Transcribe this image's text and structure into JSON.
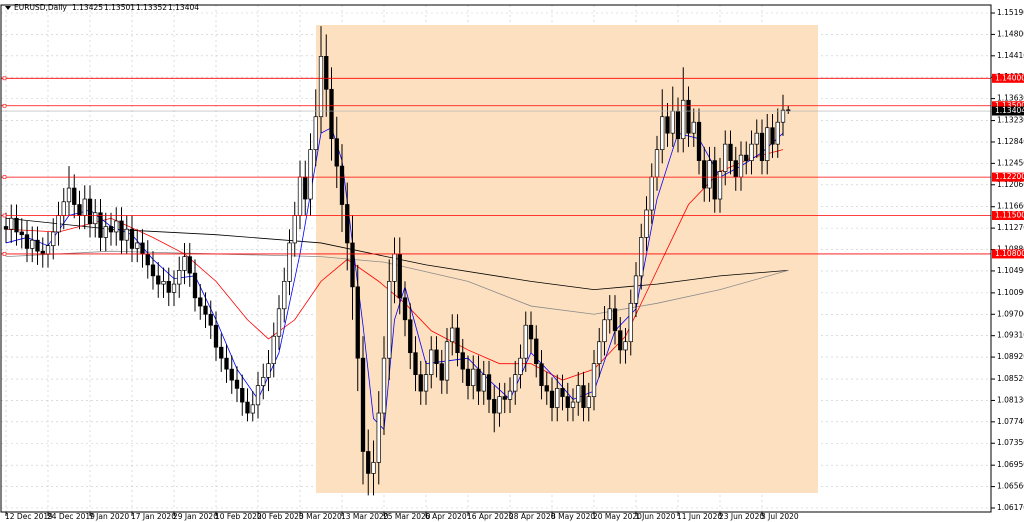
{
  "chart_data": {
    "type": "candlestick",
    "symbol": "EURUSD,Daily",
    "categories": [
      "12 Dec 2019",
      null,
      null,
      null,
      null,
      null,
      null,
      null,
      "24 Dec 2019",
      null,
      null,
      null,
      null,
      null,
      null,
      null,
      "7 Jan 2020",
      null,
      null,
      null,
      null,
      null,
      null,
      null,
      "17 Jan 2020",
      null,
      null,
      null,
      null,
      null,
      null,
      null,
      "29 Jan 2020",
      null,
      null,
      null,
      null,
      null,
      null,
      null,
      "10 Feb 2020",
      null,
      null,
      null,
      null,
      null,
      null,
      null,
      "20 Feb 2020",
      null,
      null,
      null,
      null,
      null,
      null,
      null,
      "3 Mar 2020",
      null,
      null,
      null,
      null,
      null,
      null,
      null,
      "13 Mar 2020",
      null,
      null,
      null,
      null,
      null,
      null,
      null,
      "25 Mar 2020",
      null,
      null,
      null,
      null,
      null,
      null,
      null,
      "6 Apr 2020",
      null,
      null,
      null,
      null,
      null,
      null,
      null,
      "16 Apr 2020",
      null,
      null,
      null,
      null,
      null,
      null,
      null,
      "28 Apr 2020",
      null,
      null,
      null,
      null,
      null,
      null,
      null,
      "8 May 2020",
      null,
      null,
      null,
      null,
      null,
      null,
      null,
      "20 May 2020",
      null,
      null,
      null,
      null,
      null,
      null,
      null,
      "1 Jun 2020",
      null,
      null,
      null,
      null,
      null,
      null,
      null,
      "11 Jun 2020",
      null,
      null,
      null,
      null,
      null,
      null,
      null,
      "23 Jun 2020",
      null,
      null,
      null,
      null,
      null,
      null,
      null,
      "3 Jul 2020",
      null,
      null,
      null,
      null,
      null
    ],
    "open": [
      1.113,
      1.1125,
      1.1145,
      1.112,
      1.1115,
      1.109,
      1.1105,
      1.1085,
      1.108,
      1.1095,
      1.112,
      1.115,
      1.1175,
      1.12,
      1.117,
      1.115,
      1.118,
      1.1135,
      1.1155,
      1.111,
      1.113,
      1.112,
      1.114,
      1.1105,
      1.1125,
      1.109,
      1.11,
      1.108,
      1.106,
      1.104,
      1.1025,
      1.103,
      1.101,
      1.1025,
      1.105,
      1.1075,
      1.1045,
      1.1,
      1.0985,
      1.097,
      1.095,
      1.091,
      1.089,
      1.087,
      1.085,
      1.0835,
      1.081,
      1.079,
      1.0805,
      1.084,
      1.0855,
      1.088,
      1.093,
      1.098,
      1.103,
      1.11,
      1.115,
      1.122,
      1.118,
      1.127,
      1.133,
      1.144,
      1.138,
      1.129,
      1.124,
      1.117,
      1.11,
      1.102,
      1.089,
      1.072,
      1.068,
      1.07,
      1.079,
      1.089,
      1.103,
      1.108,
      1.1,
      1.096,
      1.09,
      1.086,
      1.083,
      1.086,
      1.0905,
      1.088,
      1.085,
      1.092,
      1.0945,
      1.09,
      1.087,
      1.084,
      1.087,
      1.083,
      1.086,
      1.0815,
      1.079,
      1.082,
      1.0815,
      1.083,
      1.086,
      1.089,
      1.095,
      1.0925,
      1.088,
      1.084,
      1.083,
      1.08,
      1.0835,
      1.082,
      1.08,
      1.081,
      1.084,
      1.08,
      1.082,
      1.088,
      1.092,
      1.096,
      1.098,
      1.094,
      1.0905,
      1.092,
      1.099,
      1.104,
      1.111,
      1.116,
      1.122,
      1.127,
      1.133,
      1.13,
      1.134,
      1.129,
      1.136,
      1.13,
      1.132,
      1.125,
      1.12,
      1.125,
      1.118,
      1.123,
      1.128,
      1.125,
      1.122,
      1.126,
      1.125,
      1.128,
      1.13,
      1.125,
      1.131,
      1.128,
      1.132,
      1.13425
    ],
    "high": [
      1.1155,
      1.117,
      1.117,
      1.1145,
      1.114,
      1.113,
      1.113,
      1.111,
      1.112,
      1.1145,
      1.1175,
      1.12,
      1.124,
      1.1225,
      1.1195,
      1.1205,
      1.1205,
      1.118,
      1.118,
      1.1155,
      1.1155,
      1.1165,
      1.1165,
      1.115,
      1.115,
      1.1125,
      1.1125,
      1.1105,
      1.1085,
      1.1065,
      1.1055,
      1.1055,
      1.105,
      1.1075,
      1.11,
      1.11,
      1.107,
      1.1025,
      1.101,
      1.0995,
      1.0975,
      1.0935,
      1.0915,
      1.0895,
      1.0875,
      1.086,
      1.0835,
      1.083,
      1.0865,
      1.088,
      1.0905,
      1.0955,
      1.1005,
      1.1055,
      1.1125,
      1.1175,
      1.125,
      1.125,
      1.13,
      1.138,
      1.1495,
      1.148,
      1.142,
      1.133,
      1.128,
      1.121,
      1.115,
      1.106,
      1.093,
      1.076,
      1.074,
      1.083,
      1.093,
      1.107,
      1.111,
      1.111,
      1.103,
      1.099,
      1.093,
      1.0885,
      1.0885,
      1.093,
      1.093,
      1.0905,
      1.0945,
      1.097,
      1.097,
      1.0925,
      1.0895,
      1.0895,
      1.0895,
      1.0885,
      1.0885,
      1.084,
      1.0845,
      1.0845,
      1.0855,
      1.0885,
      1.0915,
      1.0975,
      1.0975,
      1.095,
      1.0905,
      1.0865,
      1.0855,
      1.086,
      1.086,
      1.0845,
      1.0835,
      1.0865,
      1.0865,
      1.0845,
      1.0905,
      1.0945,
      1.0985,
      1.1005,
      1.1005,
      1.0965,
      1.0945,
      1.1015,
      1.1065,
      1.1135,
      1.1185,
      1.1245,
      1.1295,
      1.138,
      1.1355,
      1.1385,
      1.1365,
      1.142,
      1.1385,
      1.1345,
      1.1345,
      1.1275,
      1.1275,
      1.1275,
      1.1255,
      1.1305,
      1.1305,
      1.1275,
      1.1285,
      1.1285,
      1.1305,
      1.1325,
      1.1325,
      1.1335,
      1.1335,
      1.1345,
      1.137,
      1.13501
    ],
    "low": [
      1.11,
      1.11,
      1.1095,
      1.109,
      1.1065,
      1.1065,
      1.106,
      1.1055,
      1.1055,
      1.107,
      1.1095,
      1.1125,
      1.115,
      1.1145,
      1.1125,
      1.1125,
      1.111,
      1.111,
      1.1085,
      1.1085,
      1.1095,
      1.1095,
      1.108,
      1.108,
      1.1065,
      1.1065,
      1.1055,
      1.1035,
      1.1015,
      1.1,
      1.1,
      1.0985,
      1.0985,
      1.1,
      1.1025,
      1.102,
      1.0975,
      1.096,
      1.0945,
      1.0925,
      1.0885,
      1.0865,
      1.0845,
      1.0825,
      1.081,
      1.0785,
      1.0775,
      1.0775,
      1.078,
      1.0815,
      1.083,
      1.0855,
      1.0905,
      1.0955,
      1.1005,
      1.1075,
      1.1125,
      1.115,
      1.115,
      1.124,
      1.13,
      1.133,
      1.125,
      1.12,
      1.112,
      1.105,
      1.096,
      1.083,
      1.066,
      1.064,
      1.064,
      1.066,
      1.075,
      1.085,
      1.099,
      1.097,
      1.093,
      1.087,
      1.083,
      1.0805,
      1.0805,
      1.0835,
      1.0855,
      1.0825,
      1.0825,
      1.0895,
      1.0875,
      1.0845,
      1.0815,
      1.0815,
      1.0805,
      1.0805,
      1.079,
      1.0755,
      1.0765,
      1.079,
      1.079,
      1.0805,
      1.0835,
      1.0865,
      1.09,
      1.0855,
      1.0815,
      1.0805,
      1.0775,
      1.0775,
      1.0795,
      1.0775,
      1.0775,
      1.0785,
      1.0775,
      1.0775,
      1.0795,
      1.0855,
      1.0895,
      1.0935,
      1.0915,
      1.088,
      1.088,
      1.0895,
      1.0965,
      1.1015,
      1.1085,
      1.1135,
      1.1195,
      1.1245,
      1.1275,
      1.1275,
      1.1265,
      1.1265,
      1.1275,
      1.1275,
      1.1225,
      1.1175,
      1.1175,
      1.1155,
      1.1155,
      1.1205,
      1.1225,
      1.1195,
      1.1195,
      1.1225,
      1.1225,
      1.1255,
      1.1225,
      1.1225,
      1.1255,
      1.1255,
      1.1295,
      1.13352
    ],
    "close": [
      1.1125,
      1.1145,
      1.112,
      1.1115,
      1.109,
      1.1105,
      1.1085,
      1.108,
      1.1095,
      1.112,
      1.115,
      1.1175,
      1.12,
      1.117,
      1.115,
      1.118,
      1.1135,
      1.1155,
      1.111,
      1.113,
      1.112,
      1.114,
      1.1105,
      1.1125,
      1.109,
      1.11,
      1.108,
      1.106,
      1.104,
      1.1025,
      1.103,
      1.101,
      1.1025,
      1.105,
      1.1075,
      1.1045,
      1.1,
      1.0985,
      1.097,
      1.095,
      1.091,
      1.089,
      1.087,
      1.085,
      1.0835,
      1.081,
      1.079,
      1.0805,
      1.084,
      1.0855,
      1.088,
      1.093,
      1.098,
      1.103,
      1.11,
      1.115,
      1.122,
      1.118,
      1.127,
      1.133,
      1.144,
      1.138,
      1.129,
      1.124,
      1.117,
      1.11,
      1.102,
      1.089,
      1.072,
      1.068,
      1.07,
      1.079,
      1.089,
      1.103,
      1.108,
      1.1,
      1.096,
      1.09,
      1.086,
      1.083,
      1.086,
      1.0905,
      1.088,
      1.085,
      1.092,
      1.0945,
      1.09,
      1.087,
      1.084,
      1.087,
      1.083,
      1.086,
      1.0815,
      1.079,
      1.082,
      1.0815,
      1.083,
      1.086,
      1.089,
      1.095,
      1.0925,
      1.088,
      1.084,
      1.083,
      1.08,
      1.0835,
      1.082,
      1.08,
      1.081,
      1.084,
      1.08,
      1.082,
      1.088,
      1.092,
      1.096,
      1.098,
      1.094,
      1.0905,
      1.092,
      1.099,
      1.104,
      1.111,
      1.116,
      1.122,
      1.127,
      1.133,
      1.13,
      1.134,
      1.129,
      1.136,
      1.13,
      1.132,
      1.125,
      1.12,
      1.125,
      1.118,
      1.123,
      1.128,
      1.125,
      1.122,
      1.126,
      1.125,
      1.128,
      1.13,
      1.125,
      1.131,
      1.128,
      1.132,
      1.1342,
      1.13404
    ],
    "up_color": "#ffffff",
    "down_color": "#000000",
    "ylim": [
      1.06097,
      1.15336
    ],
    "yticks": [
      {
        "value": 1.1519,
        "label": "1.15190"
      },
      {
        "value": 1.148,
        "label": "1.14800"
      },
      {
        "value": 1.1441,
        "label": "1.14410"
      },
      {
        "value": 1.1402,
        "label": "1.14020"
      },
      {
        "value": 1.1363,
        "label": "1.13630"
      },
      {
        "value": 1.1323,
        "label": "1.13230"
      },
      {
        "value": 1.1284,
        "label": "1.12840"
      },
      {
        "value": 1.1245,
        "label": "1.12450"
      },
      {
        "value": 1.1206,
        "label": "1.12060"
      },
      {
        "value": 1.1166,
        "label": "1.11660"
      },
      {
        "value": 1.1127,
        "label": "1.11270"
      },
      {
        "value": 1.1088,
        "label": "1.10880"
      },
      {
        "value": 1.1049,
        "label": "1.10490"
      },
      {
        "value": 1.1009,
        "label": "1.10090"
      },
      {
        "value": 1.097,
        "label": "1.09700"
      },
      {
        "value": 1.0931,
        "label": "1.09310"
      },
      {
        "value": 1.0892,
        "label": "1.08920"
      },
      {
        "value": 1.0852,
        "label": "1.08520"
      },
      {
        "value": 1.0813,
        "label": "1.08130"
      },
      {
        "value": 1.0774,
        "label": "1.07740"
      },
      {
        "value": 1.0735,
        "label": "1.07350"
      },
      {
        "value": 1.0695,
        "label": "1.06950"
      },
      {
        "value": 1.0656,
        "label": "1.06560"
      },
      {
        "value": 1.0617,
        "label": "1.06170"
      }
    ],
    "grid": true,
    "levels": [
      {
        "value": 1.14,
        "label": "1.14000"
      },
      {
        "value": 1.135,
        "label": "1.13500"
      },
      {
        "value": 1.122,
        "label": "1.12200"
      },
      {
        "value": 1.115,
        "label": "1.11500"
      },
      {
        "value": 1.108,
        "label": "1.10800"
      }
    ],
    "level_color": "#ff0000",
    "moving_averages": [
      {
        "color": "#000000",
        "x": [
          0,
          20,
          40,
          60,
          80,
          100,
          112,
          124,
          136,
          149
        ],
        "values": [
          1.1145,
          1.1125,
          1.1115,
          1.11,
          1.106,
          1.103,
          1.1015,
          1.1025,
          1.104,
          1.105
        ]
      },
      {
        "color": "#8c8c8c",
        "x": [
          0,
          20,
          40,
          60,
          72,
          88,
          100,
          112,
          124,
          136,
          149
        ],
        "values": [
          1.1075,
          1.1085,
          1.108,
          1.1075,
          1.1065,
          1.103,
          1.0985,
          1.097,
          1.099,
          1.1015,
          1.105
        ]
      },
      {
        "color": "#ff0000",
        "x": [
          0,
          10,
          20,
          28,
          34,
          40,
          46,
          50,
          55,
          60,
          65,
          71,
          76,
          81,
          88,
          94,
          100,
          106,
          112,
          118,
          124,
          130,
          136,
          142,
          148
        ],
        "values": [
          1.1125,
          1.112,
          1.1145,
          1.111,
          1.108,
          1.103,
          1.096,
          1.0925,
          1.096,
          1.103,
          1.107,
          1.103,
          1.099,
          1.094,
          1.0905,
          1.088,
          1.088,
          1.085,
          1.087,
          1.093,
          1.105,
          1.117,
          1.123,
          1.1255,
          1.127
        ]
      },
      {
        "color": "#0000ff",
        "x": [
          0,
          4,
          8,
          12,
          16,
          20,
          24,
          28,
          32,
          36,
          40,
          44,
          48,
          52,
          56,
          60,
          62,
          64,
          68,
          70,
          72,
          74,
          76,
          80,
          84,
          88,
          92,
          96,
          100,
          104,
          108,
          112,
          116,
          120,
          124,
          128,
          132,
          136,
          140,
          144,
          148
        ],
        "values": [
          1.11,
          1.111,
          1.1095,
          1.115,
          1.116,
          1.113,
          1.1115,
          1.107,
          1.1035,
          1.104,
          1.096,
          1.087,
          1.0815,
          1.09,
          1.108,
          1.13,
          1.131,
          1.125,
          1.095,
          1.078,
          1.076,
          1.096,
          1.102,
          1.088,
          1.0885,
          1.089,
          1.085,
          1.0815,
          1.09,
          1.086,
          1.0815,
          1.083,
          1.094,
          1.098,
          1.118,
          1.13,
          1.129,
          1.122,
          1.124,
          1.1265,
          1.13
        ]
      }
    ]
  }
}
